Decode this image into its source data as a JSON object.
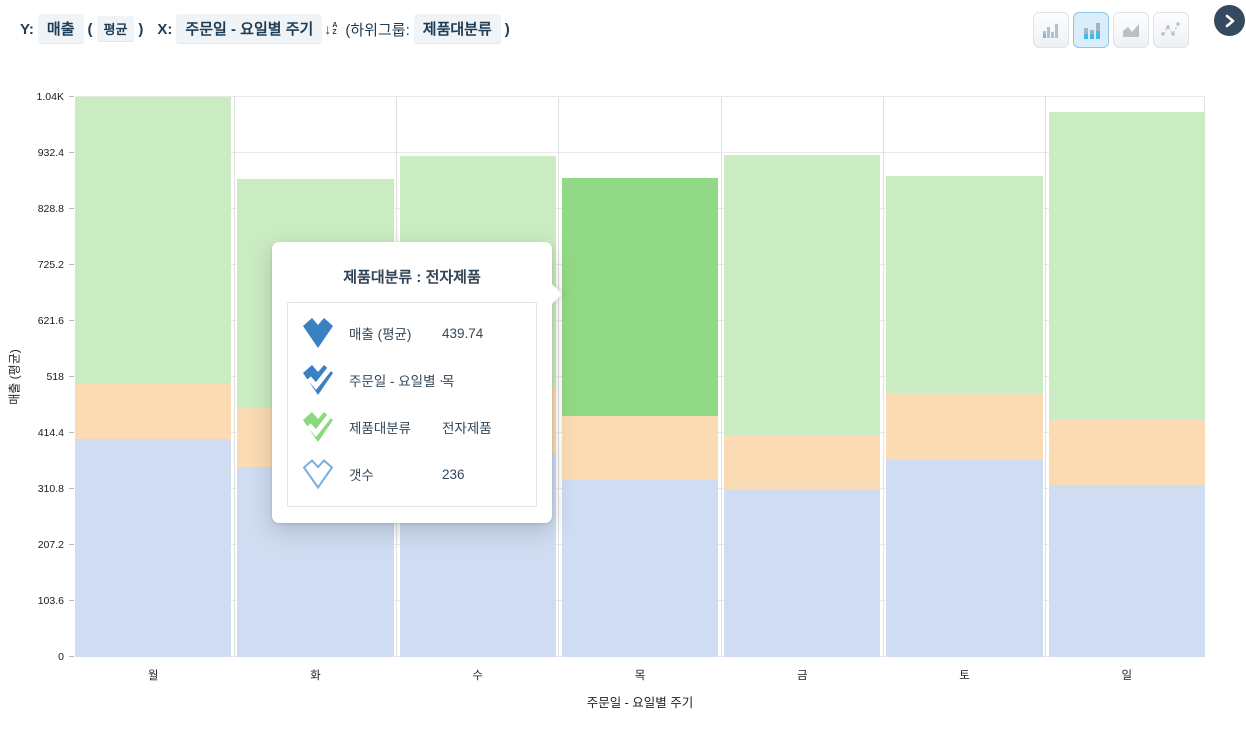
{
  "header": {
    "y_label": "Y:",
    "y_field": "매출",
    "open_paren": "(",
    "y_agg": "평균",
    "close_paren": ")",
    "x_label": "X:",
    "x_field": "주문일 - 요일별 주기",
    "sort_arrow": "↓",
    "sort_a": "A",
    "sort_z": "Z",
    "subgroup_prefix": "(하위그룹:",
    "subgroup_field": "제품대분류",
    "subgroup_suffix": ")",
    "chart_type_buttons": [
      {
        "name": "bar-chart",
        "active": false
      },
      {
        "name": "stacked-bar-chart",
        "active": true
      },
      {
        "name": "area-chart",
        "active": false
      },
      {
        "name": "scatter-line-chart",
        "active": false
      }
    ],
    "accent_color": "#4db3e6",
    "next_button_color": "#344b5f"
  },
  "tooltip": {
    "title": "제품대분류 : 전자제품",
    "rows": [
      {
        "icon": "heart-solid-blue-icon",
        "label": "매출 (평균)",
        "value": "439.74"
      },
      {
        "icon": "heart-check-blue-icon",
        "label": "주문일 - 요일별 ⋯",
        "value": "목"
      },
      {
        "icon": "heart-check-green-icon",
        "label": "제품대분류",
        "value": "전자제품"
      },
      {
        "icon": "heart-outline-icon",
        "label": "갯수",
        "value": "236"
      }
    ]
  },
  "chart_data": {
    "type": "bar",
    "stacked": true,
    "categories": [
      "월",
      "화",
      "수",
      "목",
      "금",
      "토",
      "일"
    ],
    "series": [
      {
        "name": "",
        "color": "#cfdcf1",
        "values": [
          404,
          352,
          376,
          327,
          311,
          365,
          319
        ]
      },
      {
        "name": "",
        "color": "#fbdbb3",
        "values": [
          102,
          108,
          124,
          119,
          100,
          124,
          122
        ]
      },
      {
        "name": "전자제품",
        "color": "#cbecc3",
        "hover_color": "#92d985",
        "values": [
          530,
          424,
          427,
          439.74,
          517,
          401,
          568
        ]
      }
    ],
    "highlight": {
      "category_index": 3,
      "series_index": 2,
      "category": "목",
      "count": 236
    },
    "xlabel": "주문일 - 요일별 주기",
    "ylabel": "매출 (평균)",
    "ylim": [
      0,
      1036
    ],
    "yticks": [
      "0",
      "103.6",
      "207.2",
      "310.8",
      "414.4",
      "518",
      "621.6",
      "725.2",
      "828.8",
      "932.4",
      "1.04K"
    ],
    "grid": true,
    "legend": "none"
  }
}
